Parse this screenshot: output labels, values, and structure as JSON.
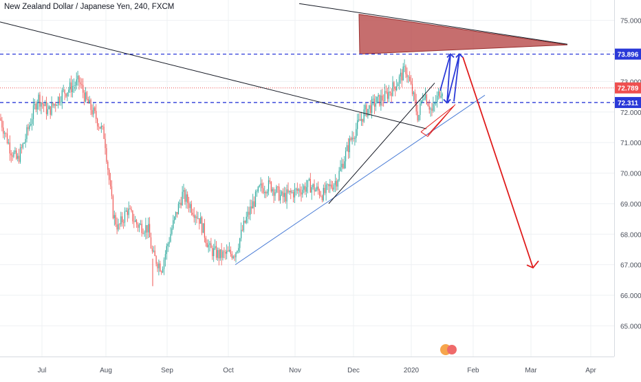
{
  "chart_data": {
    "type": "candlestick",
    "title": "New Zealand Dollar / Japanese Yen, 240, FXCM",
    "ylim": [
      64.5,
      75.4
    ],
    "y_ticks": [
      65.0,
      66.0,
      67.0,
      68.0,
      69.0,
      70.0,
      71.0,
      72.0,
      73.0,
      75.0
    ],
    "y_tick_labels": [
      "65.000",
      "66.000",
      "67.000",
      "68.000",
      "69.000",
      "70.000",
      "71.000",
      "72.000",
      "73.000",
      "75.000"
    ],
    "x_labels": [
      "Jul",
      "Aug",
      "Sep",
      "Oct",
      "Nov",
      "Dec",
      "2020",
      "Feb",
      "Mar",
      "Apr"
    ],
    "grid": true,
    "price_tags": [
      {
        "label": "73.896",
        "value": 73.896,
        "color": "#2a39d8"
      },
      {
        "label": "72.789",
        "value": 72.789,
        "color": "#ef4f4f"
      },
      {
        "label": "72.311",
        "value": 72.311,
        "color": "#2a39d8"
      }
    ],
    "series": [
      {
        "description": "price path (approximate, read from chart)",
        "time": [
          0,
          15,
          25,
          35,
          55,
          70,
          90,
          115,
          125,
          140,
          152,
          160,
          165,
          172,
          185,
          200,
          215,
          222,
          235,
          250,
          265,
          278,
          290,
          305,
          320,
          342,
          358,
          378,
          393,
          410,
          430,
          450,
          470,
          490,
          510,
          530,
          545,
          560,
          575,
          590,
          600,
          608,
          616,
          628,
          640,
          645
        ],
        "price": [
          71.8,
          70.8,
          70.4,
          71.0,
          72.5,
          72.0,
          72.6,
          73.0,
          72.4,
          71.8,
          71.2,
          69.5,
          68.6,
          68.2,
          68.8,
          68.3,
          68.2,
          67.3,
          66.9,
          68.2,
          69.3,
          68.9,
          68.5,
          67.5,
          67.3,
          67.4,
          68.5,
          69.5,
          69.6,
          69.2,
          69.4,
          69.6,
          69.3,
          69.8,
          71.1,
          72.0,
          72.3,
          72.5,
          72.9,
          73.4,
          72.6,
          71.8,
          72.7,
          72.0,
          72.7,
          72.8
        ]
      }
    ],
    "drawings": [
      {
        "name": "long-downtrend-line",
        "color": "#131722",
        "points": [
          [
            0,
            74.95
          ],
          [
            620,
            71.45
          ]
        ]
      },
      {
        "name": "upper-trend-line",
        "color": "#131722",
        "points": [
          [
            435,
            75.55
          ],
          [
            825,
            74.22
          ]
        ]
      },
      {
        "name": "ascending-support-line",
        "color": "#4a7cd6",
        "points": [
          [
            342,
            67.0
          ],
          [
            705,
            72.55
          ]
        ]
      },
      {
        "name": "channel-line",
        "color": "#131722",
        "points": [
          [
            478,
            69.0
          ],
          [
            632,
            72.95
          ]
        ]
      },
      {
        "name": "red-triangle-zone",
        "fill": "#b84a4a",
        "points": [
          [
            522,
            75.2
          ],
          [
            523,
            73.9
          ],
          [
            825,
            74.2
          ]
        ]
      },
      {
        "name": "projection-down-arrow",
        "color": "#e01b1b",
        "points": [
          [
            673,
            73.8
          ],
          [
            775,
            66.9
          ]
        ]
      }
    ]
  }
}
